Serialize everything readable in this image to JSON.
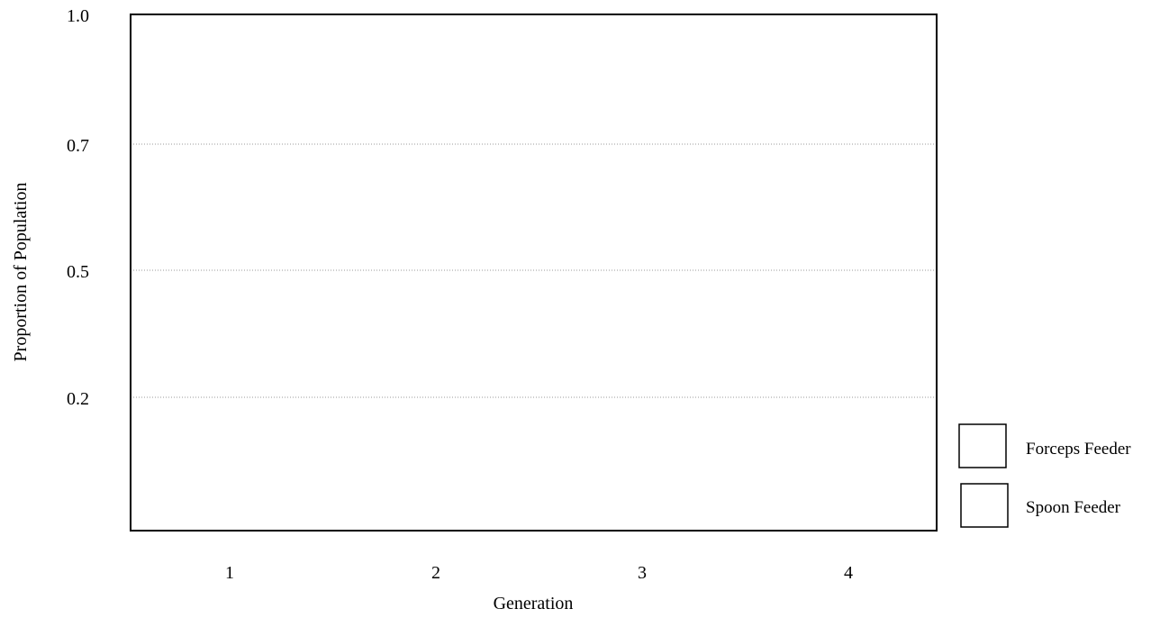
{
  "chart_data": {
    "type": "bar",
    "title": "",
    "xlabel": "Generation",
    "ylabel": "Proportion of Population",
    "categories": [
      "1",
      "2",
      "3",
      "4"
    ],
    "y_ticks": [
      "1.0",
      "0.7",
      "0.5",
      "0.2"
    ],
    "y_tick_values": [
      1.0,
      0.7,
      0.5,
      0.2
    ],
    "ylim": [
      0,
      1.0
    ],
    "grid": "horizontal dotted",
    "legend_position": "right",
    "series": [
      {
        "name": "Forceps Feeder",
        "values": [
          null,
          null,
          null,
          null
        ]
      },
      {
        "name": "Spoon Feeder",
        "values": [
          null,
          null,
          null,
          null
        ]
      }
    ]
  },
  "colors": {
    "axis": "#000000",
    "grid": "#999999",
    "legend_swatch_fill": "#ffffff"
  }
}
